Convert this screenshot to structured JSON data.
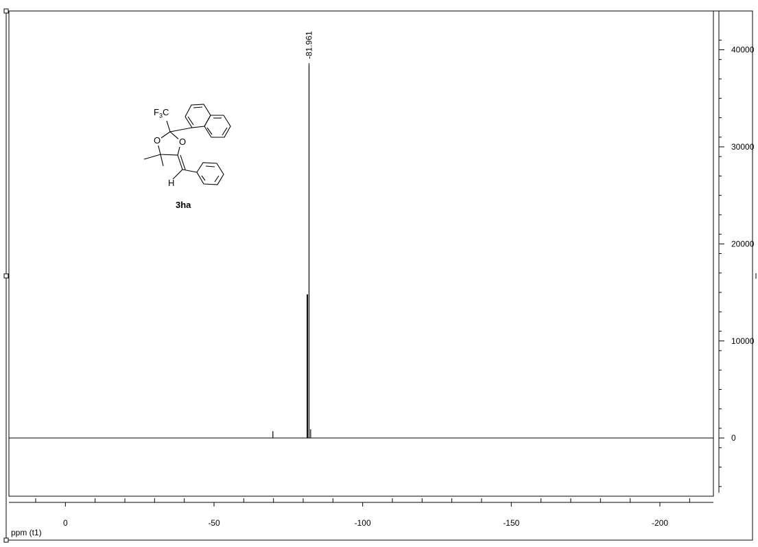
{
  "chart_data": {
    "type": "line",
    "xlabel": "ppm (t1)",
    "x_ticks": [
      0,
      -50,
      -100,
      -150,
      -200
    ],
    "y_ticks": [
      0,
      10000,
      20000,
      30000,
      40000
    ],
    "y_tick_labels": [
      "0",
      "10000",
      "20000",
      "30000",
      "40000"
    ],
    "xlim": [
      19,
      -218
    ],
    "ylim": [
      -6000,
      44000
    ],
    "peaks": [
      {
        "ppm": -81.961,
        "intensity": 38500,
        "label": "-81.961"
      },
      {
        "ppm": -81.4,
        "intensity": 14800
      },
      {
        "ppm": -69.8,
        "intensity": 700
      },
      {
        "ppm": -82.5,
        "intensity": 900
      }
    ],
    "grid": false,
    "legend": "none"
  },
  "structure": {
    "group_label": "F3C",
    "group_main": "F",
    "group_sub": "3",
    "group_tail": "C",
    "oxygen_label": "O",
    "hydrogen_label": "H",
    "compound_label": "3ha"
  }
}
